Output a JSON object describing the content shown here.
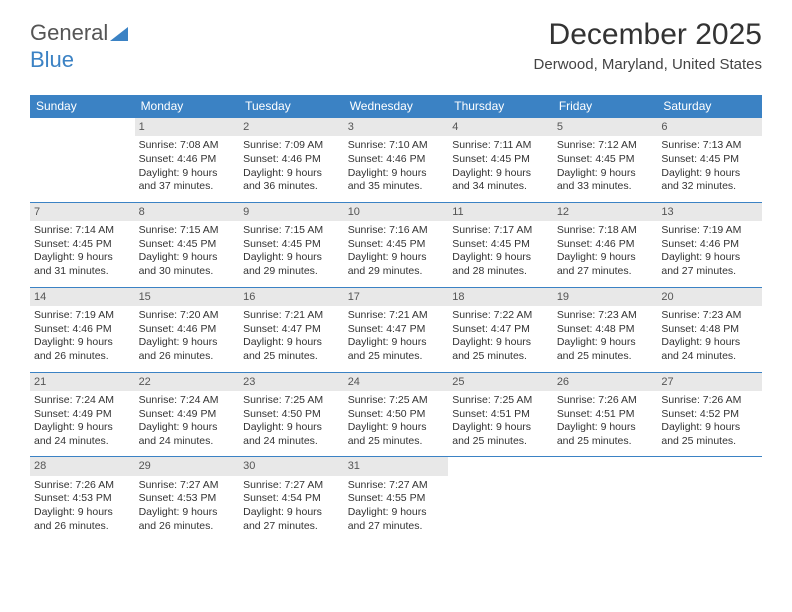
{
  "logo": {
    "text1": "General",
    "text2": "Blue"
  },
  "title": "December 2025",
  "location": "Derwood, Maryland, United States",
  "colors": {
    "header_bg": "#3b82c4",
    "daynum_bg": "#e8e8e8"
  },
  "day_headers": [
    "Sunday",
    "Monday",
    "Tuesday",
    "Wednesday",
    "Thursday",
    "Friday",
    "Saturday"
  ],
  "weeks": [
    [
      null,
      {
        "n": "1",
        "sr": "7:08 AM",
        "ss": "4:46 PM",
        "dl": "9 hours and 37 minutes."
      },
      {
        "n": "2",
        "sr": "7:09 AM",
        "ss": "4:46 PM",
        "dl": "9 hours and 36 minutes."
      },
      {
        "n": "3",
        "sr": "7:10 AM",
        "ss": "4:46 PM",
        "dl": "9 hours and 35 minutes."
      },
      {
        "n": "4",
        "sr": "7:11 AM",
        "ss": "4:45 PM",
        "dl": "9 hours and 34 minutes."
      },
      {
        "n": "5",
        "sr": "7:12 AM",
        "ss": "4:45 PM",
        "dl": "9 hours and 33 minutes."
      },
      {
        "n": "6",
        "sr": "7:13 AM",
        "ss": "4:45 PM",
        "dl": "9 hours and 32 minutes."
      }
    ],
    [
      {
        "n": "7",
        "sr": "7:14 AM",
        "ss": "4:45 PM",
        "dl": "9 hours and 31 minutes."
      },
      {
        "n": "8",
        "sr": "7:15 AM",
        "ss": "4:45 PM",
        "dl": "9 hours and 30 minutes."
      },
      {
        "n": "9",
        "sr": "7:15 AM",
        "ss": "4:45 PM",
        "dl": "9 hours and 29 minutes."
      },
      {
        "n": "10",
        "sr": "7:16 AM",
        "ss": "4:45 PM",
        "dl": "9 hours and 29 minutes."
      },
      {
        "n": "11",
        "sr": "7:17 AM",
        "ss": "4:45 PM",
        "dl": "9 hours and 28 minutes."
      },
      {
        "n": "12",
        "sr": "7:18 AM",
        "ss": "4:46 PM",
        "dl": "9 hours and 27 minutes."
      },
      {
        "n": "13",
        "sr": "7:19 AM",
        "ss": "4:46 PM",
        "dl": "9 hours and 27 minutes."
      }
    ],
    [
      {
        "n": "14",
        "sr": "7:19 AM",
        "ss": "4:46 PM",
        "dl": "9 hours and 26 minutes."
      },
      {
        "n": "15",
        "sr": "7:20 AM",
        "ss": "4:46 PM",
        "dl": "9 hours and 26 minutes."
      },
      {
        "n": "16",
        "sr": "7:21 AM",
        "ss": "4:47 PM",
        "dl": "9 hours and 25 minutes."
      },
      {
        "n": "17",
        "sr": "7:21 AM",
        "ss": "4:47 PM",
        "dl": "9 hours and 25 minutes."
      },
      {
        "n": "18",
        "sr": "7:22 AM",
        "ss": "4:47 PM",
        "dl": "9 hours and 25 minutes."
      },
      {
        "n": "19",
        "sr": "7:23 AM",
        "ss": "4:48 PM",
        "dl": "9 hours and 25 minutes."
      },
      {
        "n": "20",
        "sr": "7:23 AM",
        "ss": "4:48 PM",
        "dl": "9 hours and 24 minutes."
      }
    ],
    [
      {
        "n": "21",
        "sr": "7:24 AM",
        "ss": "4:49 PM",
        "dl": "9 hours and 24 minutes."
      },
      {
        "n": "22",
        "sr": "7:24 AM",
        "ss": "4:49 PM",
        "dl": "9 hours and 24 minutes."
      },
      {
        "n": "23",
        "sr": "7:25 AM",
        "ss": "4:50 PM",
        "dl": "9 hours and 24 minutes."
      },
      {
        "n": "24",
        "sr": "7:25 AM",
        "ss": "4:50 PM",
        "dl": "9 hours and 25 minutes."
      },
      {
        "n": "25",
        "sr": "7:25 AM",
        "ss": "4:51 PM",
        "dl": "9 hours and 25 minutes."
      },
      {
        "n": "26",
        "sr": "7:26 AM",
        "ss": "4:51 PM",
        "dl": "9 hours and 25 minutes."
      },
      {
        "n": "27",
        "sr": "7:26 AM",
        "ss": "4:52 PM",
        "dl": "9 hours and 25 minutes."
      }
    ],
    [
      {
        "n": "28",
        "sr": "7:26 AM",
        "ss": "4:53 PM",
        "dl": "9 hours and 26 minutes."
      },
      {
        "n": "29",
        "sr": "7:27 AM",
        "ss": "4:53 PM",
        "dl": "9 hours and 26 minutes."
      },
      {
        "n": "30",
        "sr": "7:27 AM",
        "ss": "4:54 PM",
        "dl": "9 hours and 27 minutes."
      },
      {
        "n": "31",
        "sr": "7:27 AM",
        "ss": "4:55 PM",
        "dl": "9 hours and 27 minutes."
      },
      null,
      null,
      null
    ]
  ],
  "labels": {
    "sunrise": "Sunrise:",
    "sunset": "Sunset:",
    "daylight": "Daylight:"
  }
}
